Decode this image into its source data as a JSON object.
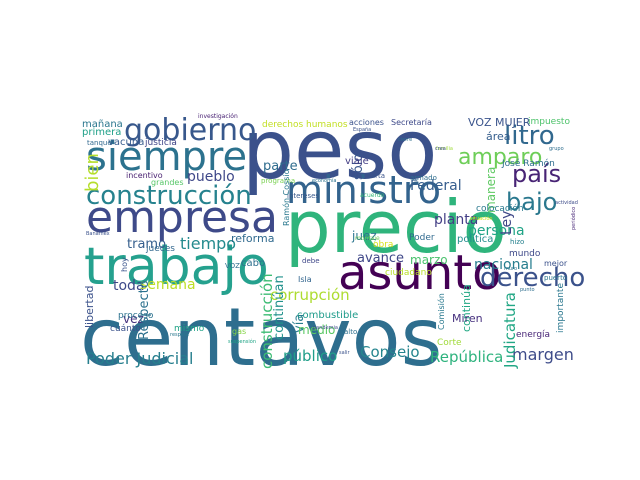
{
  "words": [
    {
      "text": "centavos",
      "color": "#2e6e8e"
    },
    {
      "text": "precio",
      "color": "#2fb47c"
    },
    {
      "text": "peso",
      "color": "#3b518b"
    },
    {
      "text": "empresa",
      "color": "#3e4a89"
    },
    {
      "text": "trabajo",
      "color": "#25a18e"
    },
    {
      "text": "asunto",
      "color": "#440154"
    },
    {
      "text": "siempre",
      "color": "#2c728e"
    },
    {
      "text": "ministro",
      "color": "#33638d"
    },
    {
      "text": "construcción",
      "color": "#26828e"
    },
    {
      "text": "gobierno",
      "color": "#38588c"
    },
    {
      "text": "derecho",
      "color": "#3b528b"
    },
    {
      "text": "amparo",
      "color": "#6ece58"
    },
    {
      "text": "litro",
      "color": "#31688e"
    },
    {
      "text": "país",
      "color": "#482475"
    },
    {
      "text": "bajo",
      "color": "#2a788e"
    },
    {
      "text": "bien",
      "color": "#b5de2b"
    },
    {
      "text": "Poder Judicial",
      "color": "#277f8e"
    },
    {
      "text": "margen",
      "color": "#3e4c8a"
    },
    {
      "text": "República",
      "color": "#2db27d"
    },
    {
      "text": "Consejo",
      "color": "#25858e"
    },
    {
      "text": "tiempo",
      "color": "#238a8d"
    },
    {
      "text": "construcción",
      "color": "#3dbc74"
    },
    {
      "text": "corrupción",
      "color": "#addc30"
    },
    {
      "text": "público",
      "color": "#1f9e89"
    },
    {
      "text": "Judicatura",
      "color": "#22a785"
    },
    {
      "text": "nacional",
      "color": "#277e8e"
    },
    {
      "text": "planta",
      "color": "#433e85"
    },
    {
      "text": "Federal",
      "color": "#365d8d"
    },
    {
      "text": "persona",
      "color": "#20a486"
    },
    {
      "text": "VOZ MUJER",
      "color": "#3a548c"
    },
    {
      "text": "mañana",
      "color": "#2a768e"
    },
    {
      "text": "primera",
      "color": "#1fa088"
    },
    {
      "text": "pueblo",
      "color": "#3f4889"
    },
    {
      "text": "tramo",
      "color": "#355f8d"
    },
    {
      "text": "reforma",
      "color": "#306a8e"
    },
    {
      "text": "toda",
      "color": "#3e4989"
    },
    {
      "text": "avance",
      "color": "#3f4788"
    },
    {
      "text": "marzo",
      "color": "#4ac16d"
    },
    {
      "text": "juez",
      "color": "#2b758e"
    },
    {
      "text": "sólo",
      "color": "#39568c"
    },
    {
      "text": "manera",
      "color": "#5ec962"
    },
    {
      "text": "parte",
      "color": "#2f6c8e"
    },
    {
      "text": "Ley",
      "color": "#3f4788"
    },
    {
      "text": "vía",
      "color": "#287c8e"
    },
    {
      "text": "medio",
      "color": "#5ac864"
    },
    {
      "text": "vez",
      "color": "#46337e"
    },
    {
      "text": "área",
      "color": "#355e8d"
    },
    {
      "text": "semana",
      "color": "#bddf26"
    },
    {
      "text": "Respecto",
      "color": "#2c718e"
    },
    {
      "text": "libertad",
      "color": "#3b528b"
    },
    {
      "text": "continúan",
      "color": "#21918c"
    },
    {
      "text": "combustible",
      "color": "#1e9b8a"
    },
    {
      "text": "continúa",
      "color": "#22a884"
    },
    {
      "text": "viaje",
      "color": "#433d84"
    },
    {
      "text": "derechos humanos",
      "color": "#c2df23"
    },
    {
      "text": "acciones",
      "color": "#3b528b"
    },
    {
      "text": "Secretaría",
      "color": "#3e4a89"
    },
    {
      "text": "impuesto",
      "color": "#4ec36b"
    },
    {
      "text": "José Ramón",
      "color": "#2e6d8e"
    },
    {
      "text": "colocación",
      "color": "#29798e"
    },
    {
      "text": "política",
      "color": "#228c8d"
    },
    {
      "text": "Poder",
      "color": "#30698e"
    },
    {
      "text": "importante",
      "color": "#2a778e"
    },
    {
      "text": "energía",
      "color": "#482677"
    },
    {
      "text": "Corte",
      "color": "#a0da39"
    },
    {
      "text": "Miren",
      "color": "#46307e"
    },
    {
      "text": "Comisión",
      "color": "#29798e"
    },
    {
      "text": "mundo",
      "color": "#3e4989"
    },
    {
      "text": "mejor",
      "color": "#3b528b"
    },
    {
      "text": "ciudadano",
      "color": "#b8de29"
    },
    {
      "text": "obra",
      "color": "#d5e21a"
    },
    {
      "text": "cabo",
      "color": "#2e6f8e"
    },
    {
      "text": "jueces",
      "color": "#31678e"
    },
    {
      "text": "incentivo",
      "color": "#481f70"
    },
    {
      "text": "vacuna",
      "color": "#365c8d"
    },
    {
      "text": "justicia",
      "color": "#404588"
    },
    {
      "text": "grandes",
      "color": "#56c667"
    },
    {
      "text": "tanque",
      "color": "#31688e"
    },
    {
      "text": "programa",
      "color": "#7ad151"
    },
    {
      "text": "intereses",
      "color": "#38598c"
    },
    {
      "text": "Ramón Cossío",
      "color": "#2a788e"
    },
    {
      "text": "Isla",
      "color": "#32658e"
    },
    {
      "text": "proceso",
      "color": "#2c728e"
    },
    {
      "text": "cuánto",
      "color": "#3b528b"
    },
    {
      "text": "mismo",
      "color": "#20a386"
    },
    {
      "text": "gas",
      "color": "#86d549"
    },
    {
      "text": "alto",
      "color": "#2d708e"
    },
    {
      "text": "hoy",
      "color": "#3a538b"
    },
    {
      "text": "VOZ",
      "color": "#2e6e8e"
    },
    {
      "text": "debe",
      "color": "#3f4788"
    },
    {
      "text": "hizo",
      "color": "#26818e"
    },
    {
      "text": "carta",
      "color": "#3a538b"
    },
    {
      "text": "armado",
      "color": "#2e6e8e"
    },
    {
      "text": "puerto",
      "color": "#2b758e"
    },
    {
      "text": "investigación",
      "color": "#482173"
    },
    {
      "text": "España",
      "color": "#3b528b"
    },
    {
      "text": "cierre",
      "color": "#2e6f8e"
    },
    {
      "text": "familia",
      "color": "#9fda3a"
    },
    {
      "text": "grupo",
      "color": "#2e6e8e"
    },
    {
      "text": "economía",
      "color": "#2c728e"
    },
    {
      "text": "crea",
      "color": "#3e4c8a"
    },
    {
      "text": "montaje",
      "color": "#6ccd5a"
    },
    {
      "text": "acuerdo",
      "color": "#35b779"
    },
    {
      "text": "Banamex",
      "color": "#3b528b"
    },
    {
      "text": "respeta",
      "color": "#2a788e"
    },
    {
      "text": "pandemia",
      "color": "#3e4c8a"
    },
    {
      "text": "suspensión",
      "color": "#20a486"
    },
    {
      "text": "salir",
      "color": "#3b528b"
    },
    {
      "text": "periódico",
      "color": "#482878"
    },
    {
      "text": "situación",
      "color": "#d0e11c"
    },
    {
      "text": "muro",
      "color": "#2a768e"
    },
    {
      "text": "punto",
      "color": "#2e6e8e"
    },
    {
      "text": "actividad",
      "color": "#3e4c8a"
    }
  ]
}
